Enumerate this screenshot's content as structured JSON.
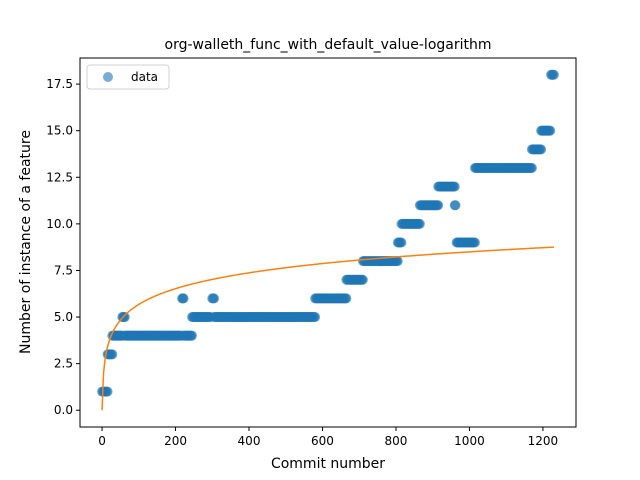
{
  "chart_data": {
    "type": "scatter",
    "title": "org-walleth_func_with_default_value-logarithm",
    "xlabel": "Commit number",
    "ylabel": "Number of instance of a feature",
    "xlim": [
      -60,
      1290
    ],
    "ylim": [
      -0.9,
      18.9
    ],
    "xticks": [
      0,
      200,
      400,
      600,
      800,
      1000,
      1200
    ],
    "yticks": [
      0.0,
      2.5,
      5.0,
      7.5,
      10.0,
      12.5,
      15.0,
      17.5
    ],
    "xtick_labels": [
      "0",
      "200",
      "400",
      "600",
      "800",
      "1000",
      "1200"
    ],
    "ytick_labels": [
      "0.0",
      "2.5",
      "5.0",
      "7.5",
      "10.0",
      "12.5",
      "15.0",
      "17.5"
    ],
    "legend": {
      "position": "upper-left",
      "entries": [
        "data"
      ]
    },
    "series": [
      {
        "name": "data",
        "kind": "scatter",
        "color": "#1f77b4",
        "segments": [
          {
            "x0": 0,
            "x1": 15,
            "y": 1
          },
          {
            "x0": 15,
            "x1": 28,
            "y": 3
          },
          {
            "x0": 28,
            "x1": 55,
            "y": 4
          },
          {
            "x0": 55,
            "x1": 62,
            "y": 5
          },
          {
            "x0": 62,
            "x1": 215,
            "y": 4
          },
          {
            "x0": 218,
            "x1": 222,
            "y": 6
          },
          {
            "x0": 222,
            "x1": 245,
            "y": 4
          },
          {
            "x0": 245,
            "x1": 295,
            "y": 5
          },
          {
            "x0": 300,
            "x1": 305,
            "y": 6
          },
          {
            "x0": 305,
            "x1": 580,
            "y": 5
          },
          {
            "x0": 580,
            "x1": 665,
            "y": 6
          },
          {
            "x0": 665,
            "x1": 710,
            "y": 7
          },
          {
            "x0": 710,
            "x1": 805,
            "y": 8
          },
          {
            "x0": 805,
            "x1": 815,
            "y": 9
          },
          {
            "x0": 815,
            "x1": 865,
            "y": 10
          },
          {
            "x0": 865,
            "x1": 915,
            "y": 11
          },
          {
            "x0": 915,
            "x1": 960,
            "y": 12
          },
          {
            "x0": 960,
            "x1": 962,
            "y": 11
          },
          {
            "x0": 965,
            "x1": 1015,
            "y": 9
          },
          {
            "x0": 1015,
            "x1": 1170,
            "y": 13
          },
          {
            "x0": 1170,
            "x1": 1195,
            "y": 14
          },
          {
            "x0": 1195,
            "x1": 1220,
            "y": 15
          },
          {
            "x0": 1222,
            "x1": 1230,
            "y": 18
          }
        ]
      },
      {
        "name": "",
        "kind": "line",
        "color": "#ff7f0e",
        "model": "logarithm",
        "coef": 1.23,
        "x_range": [
          0,
          1230
        ]
      }
    ]
  }
}
